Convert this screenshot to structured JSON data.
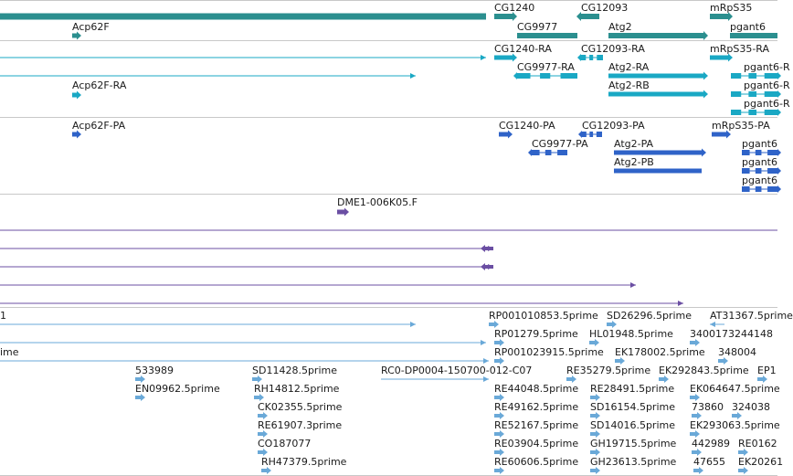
{
  "colors": {
    "gene": "#2b8f8f",
    "transcript": "#1aa8c4",
    "protein": "#2f63c8",
    "clone": "#6b4fa3",
    "est": "#6aa9d8",
    "divider": "#c8c8c8"
  },
  "tracks": {
    "genes": {
      "labels": [
        "CG1240",
        "CG12093",
        "mRpS35",
        "Acp62F",
        "CG9977",
        "Atg2",
        "pgant6"
      ]
    },
    "transcripts": {
      "labels": [
        "CG1240-RA",
        "CG12093-RA",
        "mRpS35-RA",
        "CG9977-RA",
        "Acp62F-RA",
        "Atg2-RA",
        "pgant6-R",
        "Atg2-RB",
        "pgant6-R",
        "pgant6-R"
      ]
    },
    "proteins": {
      "labels": [
        "Acp62F-PA",
        "CG1240-PA",
        "CG12093-PA",
        "mRpS35-PA",
        "CG9977-PA",
        "Atg2-PA",
        "pgant6",
        "Atg2-PB",
        "pgant6",
        "pgant6"
      ]
    },
    "clones": {
      "labels": [
        "DME1-006K05.F"
      ]
    },
    "ests": {
      "labels": [
        "1",
        "RP001010853.5prime",
        "SD26296.5prime",
        "AT31367.5prime",
        "RP01279.5prime",
        "HL01948.5prime",
        "3400173244148",
        "ime",
        "RP001023915.5prime",
        "EK178002.5prime",
        "348004",
        "533989",
        "SD11428.5prime",
        "RC0-DP0004-150700-012-C07",
        "RE35279.5prime",
        "EK292843.5prime",
        "EP1",
        "EN09962.5prime",
        "RH14812.5prime",
        "RE44048.5prime",
        "RE28491.5prime",
        "EK064647.5prime",
        "CK02355.5prime",
        "RE49162.5prime",
        "SD16154.5prime",
        "73860",
        "324038",
        "RE61907.3prime",
        "RE52167.5prime",
        "SD14016.5prime",
        "EK293063.5prime",
        "CO187077",
        "RE03904.5prime",
        "GH19715.5prime",
        "442989",
        "RE0162",
        "RH47379.5prime",
        "RE60606.5prime",
        "GH23613.5prime",
        "47655",
        "EK20261"
      ]
    }
  }
}
